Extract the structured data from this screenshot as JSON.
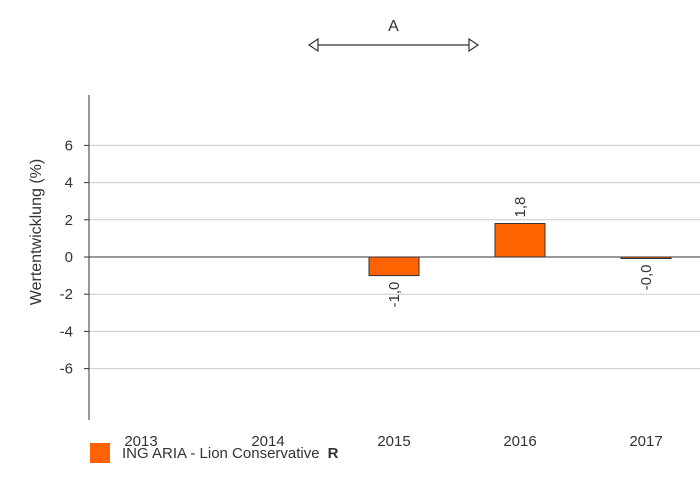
{
  "chart_data": {
    "type": "bar",
    "categories": [
      "2013",
      "2014",
      "2015",
      "2016",
      "2017"
    ],
    "series": [
      {
        "name": "ING ARIA - Lion Conservative",
        "values": [
          null,
          null,
          -1.0,
          1.8,
          -0.0
        ]
      }
    ],
    "data_labels": [
      "",
      "",
      "-1,0",
      "1,8",
      "-0,0"
    ],
    "ylabel": "Wertentwicklung (%)",
    "yticks": [
      6,
      4,
      2,
      0,
      -2,
      -4,
      -6
    ],
    "ytick_labels": [
      "6",
      "4",
      "2",
      "0",
      "-2",
      "-4",
      "-6"
    ],
    "ylim": [
      -9,
      9
    ],
    "grid": true,
    "annotation": {
      "text": "A",
      "from_category": "2014",
      "to_category": "2015"
    },
    "legend": {
      "label": "ING ARIA - Lion Conservative",
      "code": "R",
      "position": "bottom-left"
    }
  },
  "colors": {
    "bar": "#ff6200",
    "grid": "#cccccc",
    "axis": "#333333"
  }
}
